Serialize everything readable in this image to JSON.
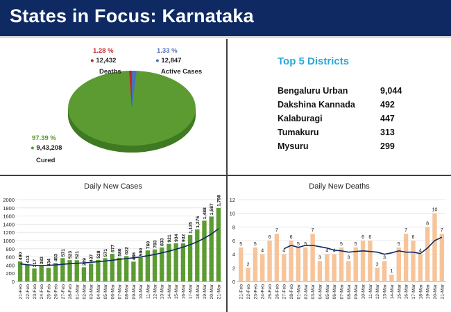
{
  "header": {
    "title": "States in Focus: Karnataka"
  },
  "pie": {
    "deaths": {
      "pct": "1.28 %",
      "count": "12,432",
      "label": "Deaths",
      "share": 1.28,
      "color": "#c0252c"
    },
    "active": {
      "pct": "1.33 %",
      "count": "12,847",
      "label": "Active Cases",
      "share": 1.33,
      "color": "#4f6fb8"
    },
    "cured": {
      "pct": "97.39 %",
      "count": "9,43,208",
      "label": "Cured",
      "share": 97.39,
      "color": "#5b9b32"
    }
  },
  "districts": {
    "title": "Top 5 Districts",
    "rows": [
      {
        "name": "Bengaluru Urban",
        "value": "9,044"
      },
      {
        "name": "Dakshina Kannada",
        "value": "492"
      },
      {
        "name": "Kalaburagi",
        "value": "447"
      },
      {
        "name": "Tumakuru",
        "value": "313"
      },
      {
        "name": "Mysuru",
        "value": "299"
      }
    ]
  },
  "chart_data": [
    {
      "type": "bar",
      "title": "Daily New Cases",
      "ylim": [
        0,
        2000
      ],
      "yticks": [
        0,
        200,
        400,
        600,
        800,
        1000,
        1200,
        1400,
        1600,
        1800,
        2000
      ],
      "grid": true,
      "bar_color": "#5b9b32",
      "trend_color": "#0d2a63",
      "categories": [
        "21-Feb",
        "22-Feb",
        "23-Feb",
        "24-Feb",
        "25-Feb",
        "26-Feb",
        "27-Feb",
        "28-Feb",
        "01-Mar",
        "02-Mar",
        "03-Mar",
        "04-Mar",
        "05-Mar",
        "06-Mar",
        "07-Mar",
        "08-Mar",
        "09-Mar",
        "10-Mar",
        "11-Mar",
        "12-Mar",
        "13-Mar",
        "14-Mar",
        "15-Mar",
        "16-Mar",
        "17-Mar",
        "18-Mar",
        "19-Mar",
        "20-Mar",
        "21-Mar"
      ],
      "values": [
        490,
        413,
        317,
        383,
        334,
        453,
        571,
        523,
        521,
        349,
        437,
        528,
        571,
        677,
        580,
        622,
        486,
        590,
        760,
        783,
        833,
        921,
        934,
        932,
        1135,
        1275,
        1488,
        1587,
        1798
      ],
      "labels": [
        "490",
        "413",
        "317",
        "383",
        "334",
        "453",
        "571",
        "523",
        "521",
        "349",
        "437",
        "528",
        "571",
        "677",
        "580",
        "622",
        "486",
        "590",
        "760",
        "783",
        "833",
        "921",
        "934",
        "932",
        "1,135",
        "1,275",
        "1,488",
        "1,587",
        "1,798"
      ],
      "trend": [
        430,
        410,
        395,
        390,
        395,
        405,
        420,
        435,
        445,
        455,
        470,
        485,
        500,
        520,
        540,
        560,
        580,
        600,
        630,
        660,
        700,
        740,
        790,
        840,
        900,
        970,
        1060,
        1160,
        1290
      ]
    },
    {
      "type": "bar",
      "title": "Daily New Deaths",
      "ylim": [
        0,
        12
      ],
      "yticks": [
        0,
        2,
        4,
        6,
        8,
        10,
        12
      ],
      "grid": true,
      "bar_color": "#f7c49a",
      "trend_color": "#0d2a63",
      "categories": [
        "21-Feb",
        "22-Feb",
        "23-Feb",
        "24-Feb",
        "25-Feb",
        "26-Feb",
        "27-Feb",
        "28-Feb",
        "01-Mar",
        "02-Mar",
        "03-Mar",
        "04-Mar",
        "05-Mar",
        "06-Mar",
        "07-Mar",
        "08-Mar",
        "09-Mar",
        "10-Mar",
        "11-Mar",
        "12-Mar",
        "13-Mar",
        "14-Mar",
        "15-Mar",
        "16-Mar",
        "17-Mar",
        "18-Mar",
        "19-Mar",
        "20-Mar",
        "21-Mar"
      ],
      "values": [
        5,
        2,
        5,
        4,
        6,
        7,
        4,
        6,
        5,
        5,
        7,
        3,
        4,
        4,
        5,
        3,
        5,
        6,
        6,
        2,
        3,
        1,
        5,
        7,
        6,
        4,
        8,
        10,
        7
      ],
      "labels": [
        "5",
        "2",
        "5",
        "4",
        "6",
        "7",
        "4",
        "6",
        "5",
        "5",
        "7",
        "3",
        "4",
        "4",
        "5",
        "3",
        "5",
        "6",
        "6",
        "2",
        "3",
        "1",
        "5",
        "7",
        "6",
        "4",
        "8",
        "10",
        "7"
      ],
      "trend": [
        null,
        null,
        null,
        null,
        null,
        null,
        4.8,
        5.3,
        5.0,
        5.3,
        5.3,
        5.1,
        4.9,
        4.6,
        4.5,
        4.3,
        4.4,
        4.5,
        4.4,
        4.3,
        4.0,
        4.2,
        4.5,
        4.3,
        4.3,
        4.1,
        4.9,
        6.0,
        6.5
      ]
    }
  ]
}
